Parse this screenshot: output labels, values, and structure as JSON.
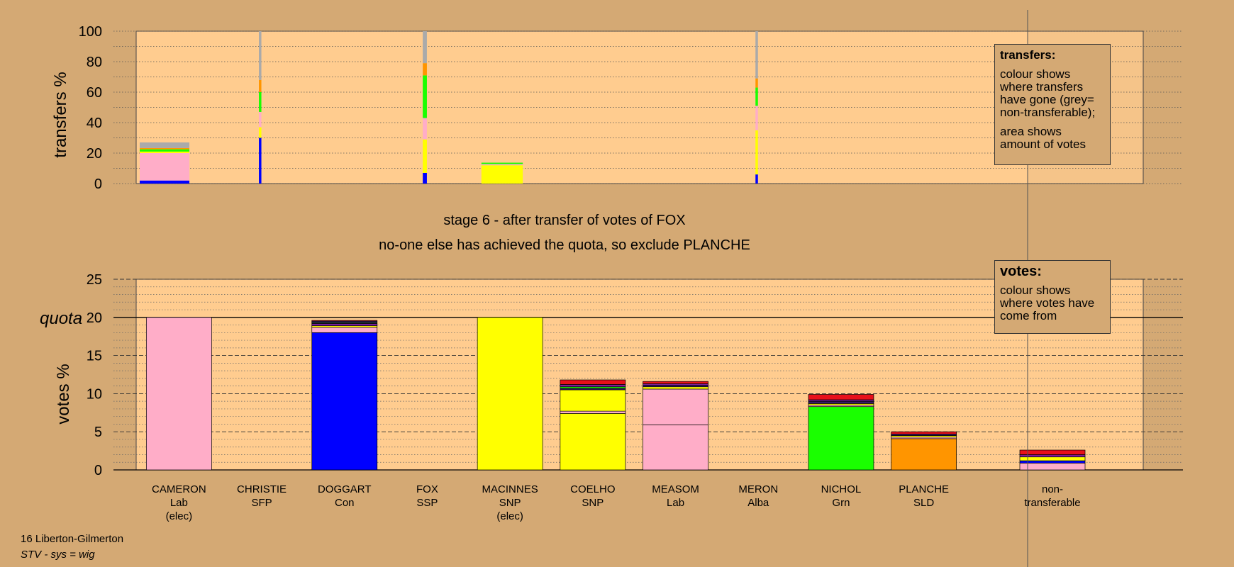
{
  "constituency": "16 Liberton-Gilmerton",
  "system": "STV - sys = wig",
  "stage_line1": "stage 6 - after transfer of votes of FOX",
  "stage_line2": "no-one else has achieved the quota, so exclude PLANCHE",
  "legend_transfers": {
    "title": "transfers:",
    "line1": "colour shows where transfers have gone (grey= non-transferable);",
    "line2": "area shows amount of votes"
  },
  "legend_votes": {
    "title": "votes:",
    "line1": "colour shows where votes have come from"
  },
  "colors": {
    "background": "#d4a974",
    "plot": "#ffcc8f",
    "Lab": "#ffadc8",
    "Con": "#0000ff",
    "SNP": "#ffff00",
    "Grn": "#1aff00",
    "SLD": "#ff9500",
    "Alba": "#7a1f9a",
    "SSP": "#e8101a",
    "SFP": "#3a1a6a",
    "nontransferable": "#aaaaaa"
  },
  "chart_data": [
    {
      "type": "bar",
      "title": "",
      "ylabel": "transfers %",
      "ylim": [
        0,
        100
      ],
      "yticks": [
        0,
        20,
        40,
        60,
        80,
        100
      ],
      "categories": [
        "CAMERON",
        "CHRISTIE",
        "DOGGART",
        "FOX",
        "MACINNES",
        "COELHO",
        "MEASOM",
        "MERON",
        "NICHOL",
        "PLANCHE",
        "non-transferable"
      ],
      "bars": [
        {
          "candidate": "CAMERON",
          "width_share": 0.6,
          "segments": [
            [
              "Con",
              2
            ],
            [
              "Lab",
              18
            ],
            [
              "SNP",
              1
            ],
            [
              "Grn",
              1.5
            ],
            [
              "SLD",
              0.8
            ],
            [
              "nontransferable",
              3.7
            ]
          ]
        },
        {
          "candidate": "CHRISTIE",
          "width_share": 0.03,
          "segments": [
            [
              "Con",
              30
            ],
            [
              "SNP",
              7
            ],
            [
              "Lab",
              10
            ],
            [
              "Grn",
              13
            ],
            [
              "SLD",
              8
            ],
            [
              "nontransferable",
              32
            ]
          ]
        },
        {
          "candidate": "FOX",
          "width_share": 0.05,
          "segments": [
            [
              "Con",
              7
            ],
            [
              "SNP",
              22
            ],
            [
              "Lab",
              14
            ],
            [
              "Grn",
              28
            ],
            [
              "SLD",
              8
            ],
            [
              "nontransferable",
              21
            ]
          ]
        },
        {
          "candidate": "MACINNES",
          "width_share": 0.5,
          "segments": [
            [
              "SNP",
              12
            ],
            [
              "Lab",
              0.8
            ],
            [
              "Grn",
              0.9
            ]
          ]
        },
        {
          "candidate": "MERON",
          "width_share": 0.03,
          "segments": [
            [
              "Con",
              6
            ],
            [
              "SNP",
              29
            ],
            [
              "Lab",
              16
            ],
            [
              "Grn",
              12
            ],
            [
              "SLD",
              6
            ],
            [
              "nontransferable",
              31
            ]
          ]
        }
      ]
    },
    {
      "type": "bar",
      "title": "",
      "ylabel": "votes %",
      "ylim": [
        0,
        25
      ],
      "yticks": [
        0,
        5,
        10,
        15,
        20,
        25
      ],
      "quota": 20,
      "quota_label": "quota",
      "candidates": [
        {
          "name": "CAMERON",
          "party": "Lab",
          "status": "(elec)",
          "segments": [
            [
              "Lab",
              20
            ]
          ]
        },
        {
          "name": "CHRISTIE",
          "party": "SFP",
          "status": "",
          "segments": []
        },
        {
          "name": "DOGGART",
          "party": "Con",
          "status": "",
          "segments": [
            [
              "Con",
              18.0
            ],
            [
              "Lab",
              0.7
            ],
            [
              "SNP",
              0.2
            ],
            [
              "Alba",
              0.3
            ],
            [
              "Grn",
              0.1
            ],
            [
              "SFP",
              0.2
            ],
            [
              "SSP",
              0.1
            ]
          ]
        },
        {
          "name": "FOX",
          "party": "SSP",
          "status": "",
          "segments": []
        },
        {
          "name": "MACINNES",
          "party": "SNP",
          "status": "(elec)",
          "segments": [
            [
              "SNP",
              20
            ]
          ]
        },
        {
          "name": "COELHO",
          "party": "SNP",
          "status": "",
          "segments": [
            [
              "SNP",
              7.4
            ],
            [
              "Lab",
              0.3
            ],
            [
              "SNP",
              2.8
            ],
            [
              "SFP",
              0.2
            ],
            [
              "Grn",
              0.2
            ],
            [
              "Alba",
              0.3
            ],
            [
              "SSP",
              0.6
            ]
          ]
        },
        {
          "name": "MEASOM",
          "party": "Lab",
          "status": "",
          "segments": [
            [
              "Lab",
              5.9
            ],
            [
              "Lab",
              4.7
            ],
            [
              "SNP",
              0.3
            ],
            [
              "SFP",
              0.2
            ],
            [
              "Alba",
              0.2
            ],
            [
              "SSP",
              0.3
            ]
          ]
        },
        {
          "name": "MERON",
          "party": "Alba",
          "status": "",
          "segments": []
        },
        {
          "name": "NICHOL",
          "party": "Grn",
          "status": "",
          "segments": [
            [
              "Grn",
              8.3
            ],
            [
              "Lab",
              0.2
            ],
            [
              "SNP",
              0.2
            ],
            [
              "SFP",
              0.3
            ],
            [
              "Alba",
              0.2
            ],
            [
              "SSP",
              0.7
            ]
          ]
        },
        {
          "name": "PLANCHE",
          "party": "SLD",
          "status": "",
          "segments": [
            [
              "SLD",
              4.1
            ],
            [
              "Lab",
              0.2
            ],
            [
              "SNP",
              0.2
            ],
            [
              "SFP",
              0.2
            ],
            [
              "SSP",
              0.3
            ]
          ]
        },
        {
          "name": "non-transferable",
          "party": "",
          "status": "",
          "segments": [
            [
              "Lab",
              0.9
            ],
            [
              "Con",
              0.3
            ],
            [
              "SNP",
              0.5
            ],
            [
              "Alba",
              0.3
            ],
            [
              "SSP",
              0.6
            ]
          ]
        }
      ]
    }
  ]
}
